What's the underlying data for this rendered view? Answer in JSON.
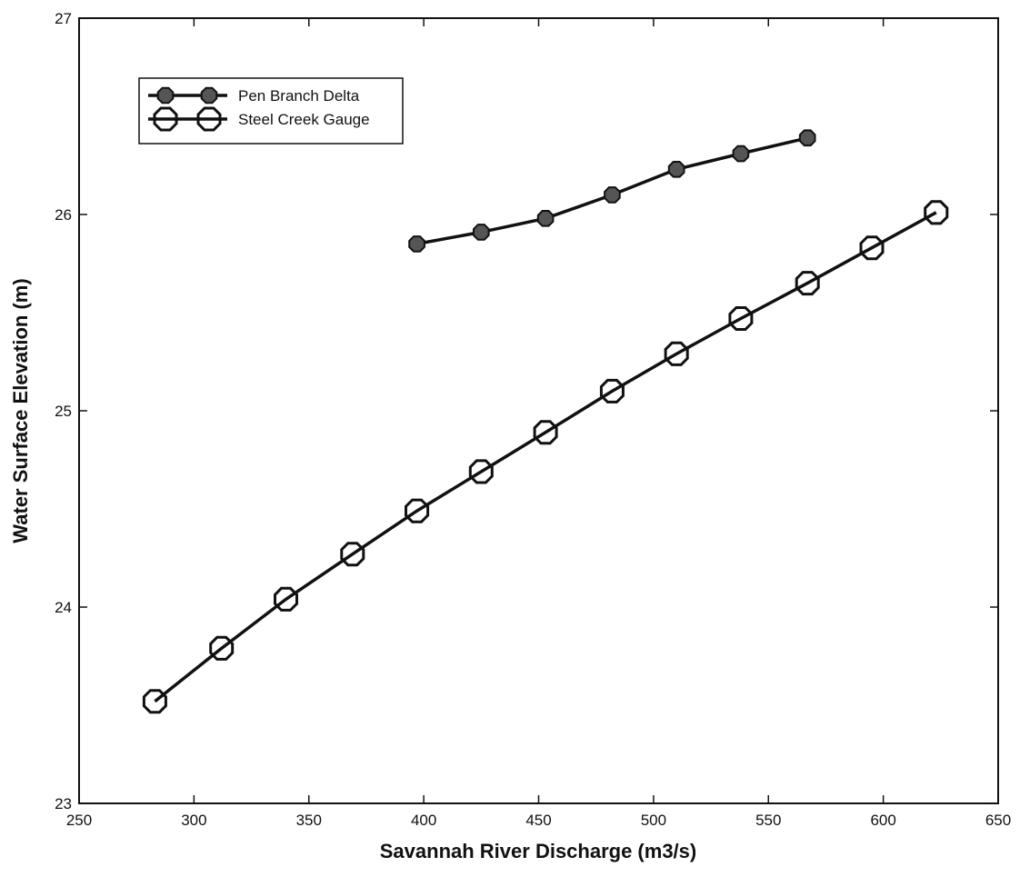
{
  "chart_data": {
    "type": "line",
    "xlabel": "Savannah River Discharge (m3/s)",
    "ylabel": "Water Surface Elevation (m)",
    "xlim": [
      250,
      650
    ],
    "ylim": [
      23,
      27
    ],
    "xticks": [
      "250",
      "300",
      "350",
      "400",
      "450",
      "500",
      "550",
      "600",
      "650"
    ],
    "yticks": [
      "23",
      "24",
      "25",
      "26",
      "27"
    ],
    "grid": false,
    "legend_position": "top-left",
    "series": [
      {
        "name": "Pen Branch Delta",
        "marker": "filled-octagon",
        "color": "#555555",
        "x": [
          397,
          425,
          453,
          482,
          510,
          538,
          567
        ],
        "y": [
          25.85,
          25.91,
          25.98,
          26.1,
          26.23,
          26.31,
          26.39
        ]
      },
      {
        "name": "Steel Creek Gauge",
        "marker": "open-octagon",
        "color": "#111111",
        "x": [
          283,
          312,
          340,
          369,
          397,
          425,
          453,
          482,
          510,
          538,
          567,
          595,
          623
        ],
        "y": [
          23.52,
          23.79,
          24.04,
          24.27,
          24.49,
          24.69,
          24.89,
          25.1,
          25.29,
          25.47,
          25.65,
          25.83,
          26.01
        ]
      }
    ]
  }
}
